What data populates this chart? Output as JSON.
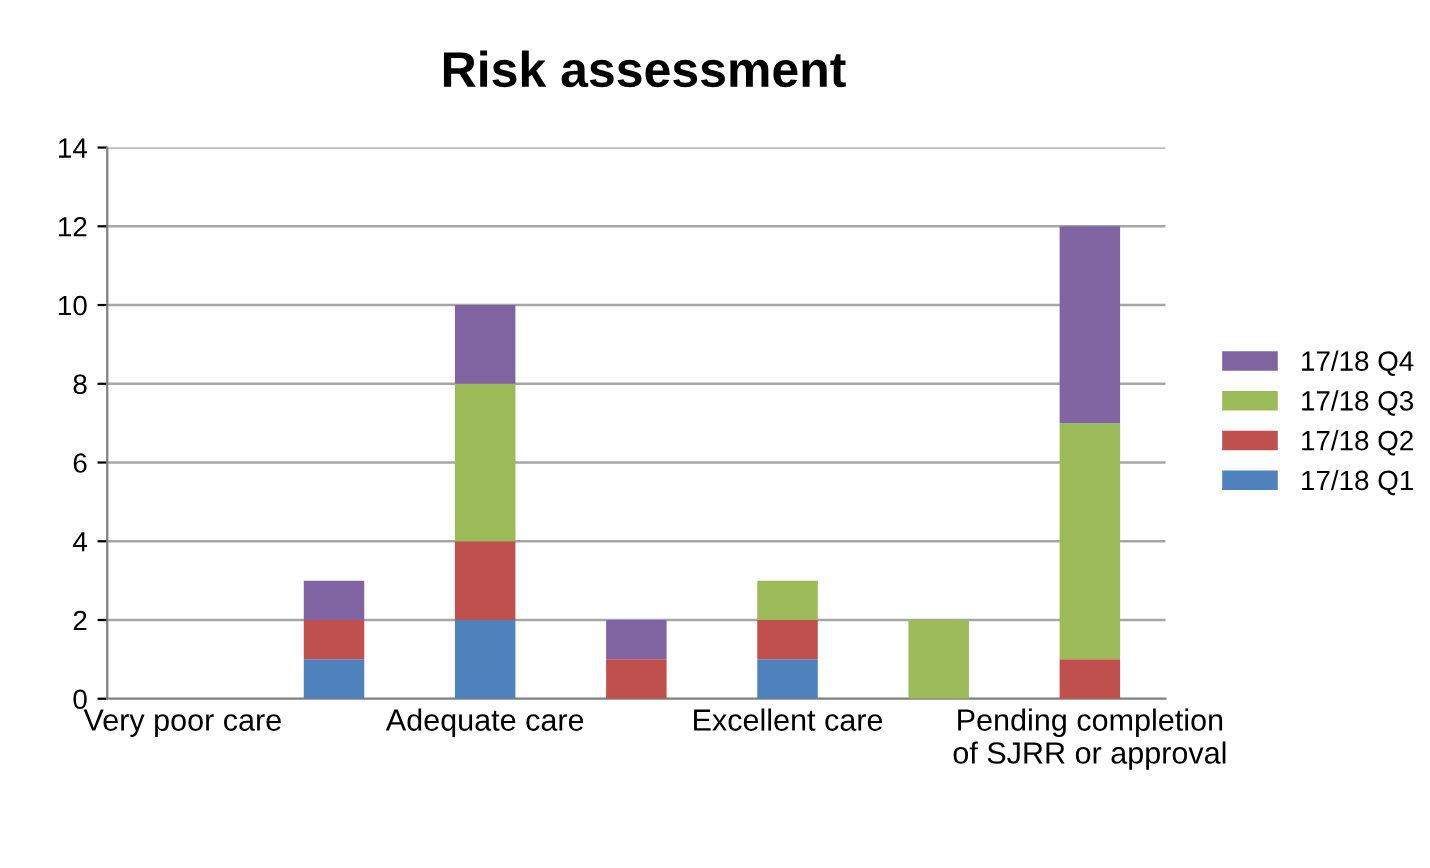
{
  "chart_data": {
    "type": "bar",
    "title": "Risk assessment",
    "stacked": true,
    "categories": [
      "Very poor care",
      null,
      "Adequate care",
      null,
      "Excellent care",
      null,
      "Pending completion of SJRR or approval"
    ],
    "series": [
      {
        "name": "17/18 Q1",
        "color": "#4f81bd",
        "values": [
          0,
          1,
          2,
          0,
          1,
          0,
          0
        ]
      },
      {
        "name": "17/18 Q2",
        "color": "#c0504d",
        "values": [
          0,
          1,
          2,
          1,
          1,
          0,
          1
        ]
      },
      {
        "name": "17/18 Q3",
        "color": "#9bbb59",
        "values": [
          0,
          0,
          4,
          0,
          1,
          2,
          6
        ]
      },
      {
        "name": "17/18 Q4",
        "color": "#8064a2",
        "values": [
          0,
          1,
          2,
          1,
          0,
          0,
          5
        ]
      }
    ],
    "ylim": [
      0,
      14
    ],
    "yticks": [
      0,
      2,
      4,
      6,
      8,
      10,
      12,
      14
    ],
    "grid": "y",
    "legend": "right"
  }
}
